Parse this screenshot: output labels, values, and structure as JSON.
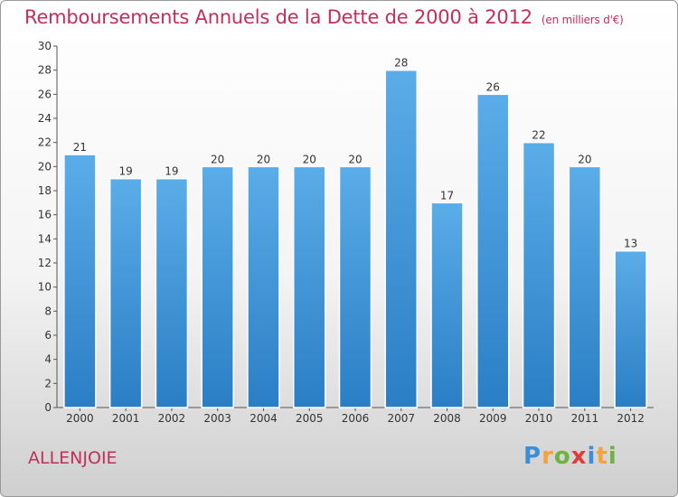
{
  "title": "Remboursements Annuels de la Dette de 2000 à 2012",
  "subtitle": "(en milliers d'€)",
  "commune": "ALLENJOIE",
  "logo": "Proxiti",
  "colors": {
    "bar_top": "#5aade8",
    "bar_bottom": "#2a7ec4",
    "title": "#c0305a"
  },
  "chart_data": {
    "type": "bar",
    "title": "Remboursements Annuels de la Dette de 2000 à 2012",
    "categories": [
      "2000",
      "2001",
      "2002",
      "2003",
      "2004",
      "2005",
      "2006",
      "2007",
      "2008",
      "2009",
      "2010",
      "2011",
      "2012"
    ],
    "values": [
      21,
      19,
      19,
      20,
      20,
      20,
      20,
      28,
      17,
      26,
      22,
      20,
      13
    ],
    "ylim": [
      0,
      30
    ],
    "yticks": [
      0,
      2,
      4,
      6,
      8,
      10,
      12,
      14,
      16,
      18,
      20,
      22,
      24,
      26,
      28,
      30
    ],
    "grid": false,
    "data_labels": true
  }
}
